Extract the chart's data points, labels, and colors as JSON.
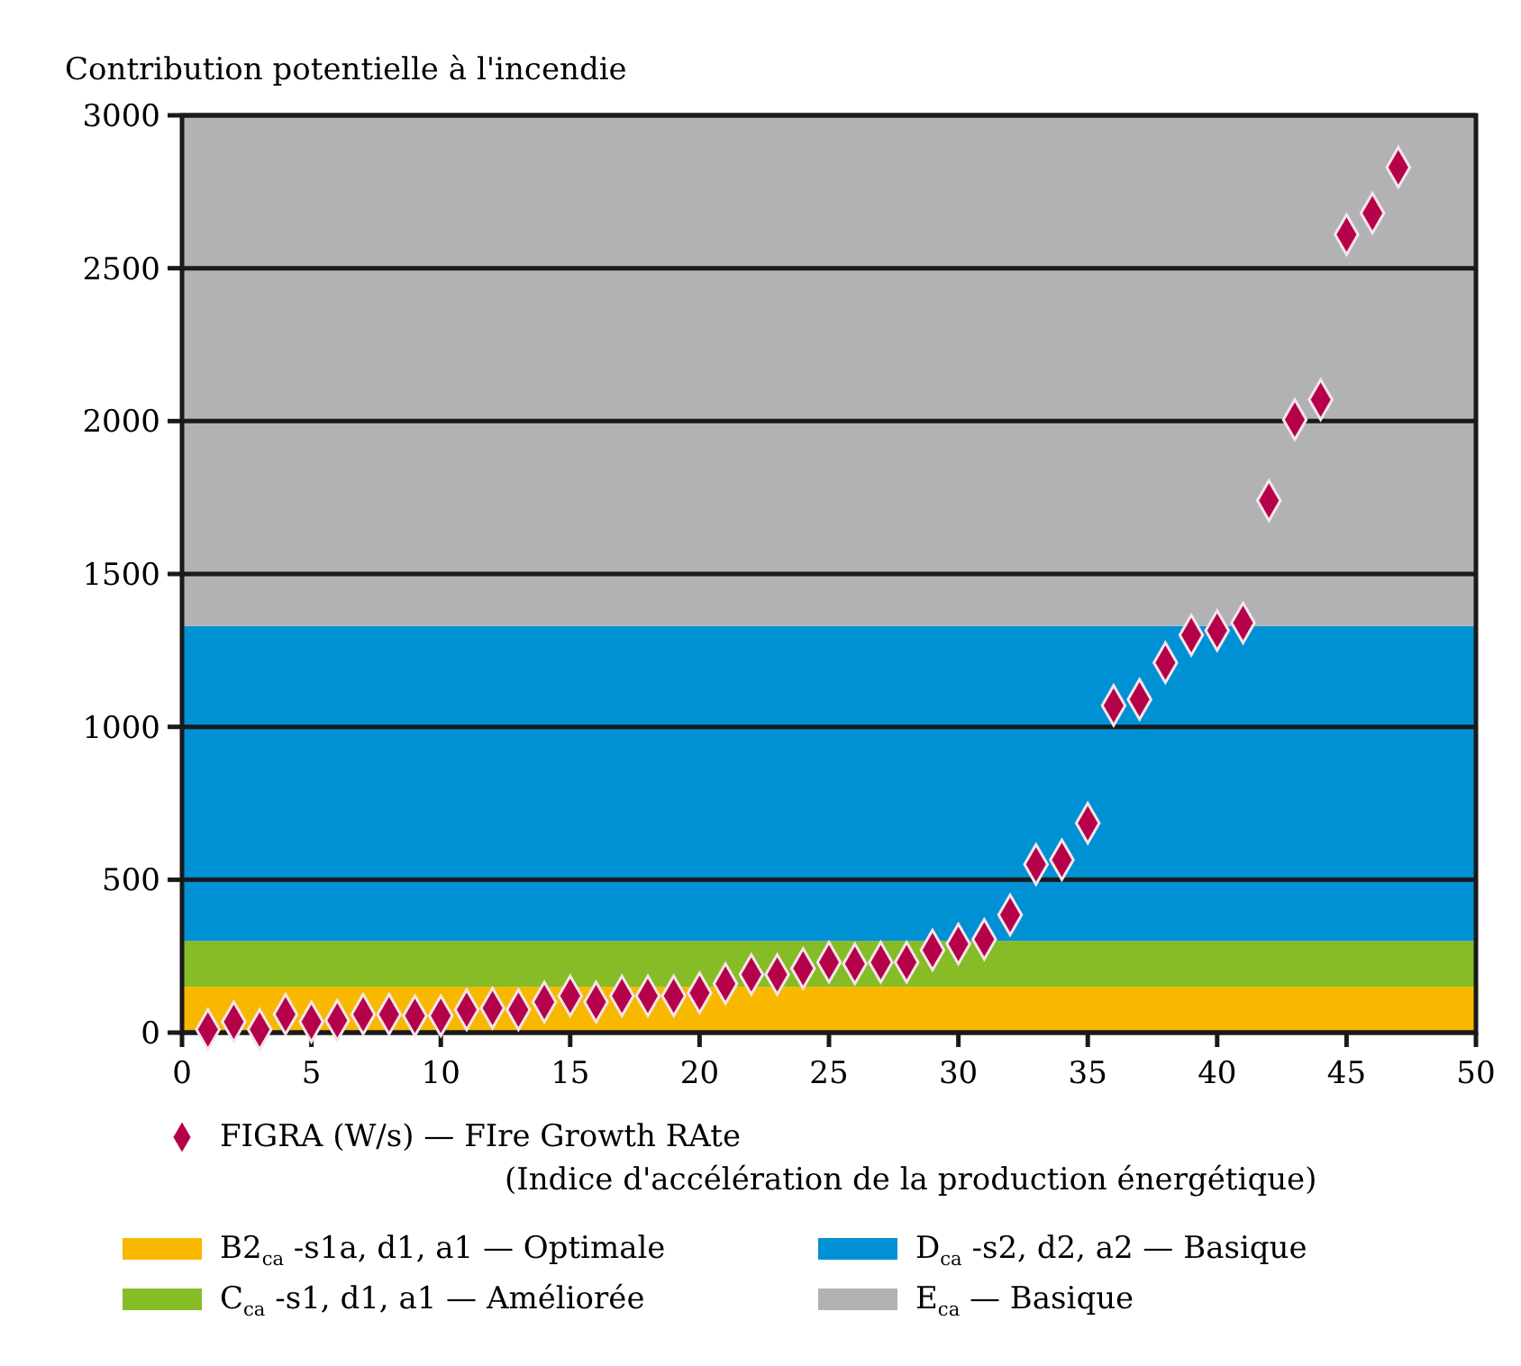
{
  "chart_data": {
    "type": "scatter",
    "ylabel": "Contribution potentielle à l'incendie",
    "x": [
      1,
      2,
      3,
      4,
      5,
      6,
      7,
      8,
      9,
      10,
      11,
      12,
      13,
      14,
      15,
      16,
      17,
      18,
      19,
      20,
      21,
      22,
      23,
      24,
      25,
      26,
      27,
      28,
      29,
      30,
      31,
      32,
      33,
      34,
      35,
      36,
      37,
      38,
      39,
      40,
      41,
      42,
      43,
      44,
      45,
      46,
      47
    ],
    "series": [
      {
        "name": "FIGRA (W/s) — FIre Growth RAte\n(Indice d'accélération de la production énergétique)",
        "color": "#b5004a",
        "values": [
          10,
          35,
          10,
          60,
          35,
          40,
          60,
          60,
          55,
          55,
          75,
          80,
          75,
          100,
          120,
          100,
          120,
          120,
          120,
          130,
          160,
          190,
          190,
          210,
          230,
          225,
          230,
          230,
          270,
          290,
          305,
          385,
          550,
          565,
          685,
          1070,
          1090,
          1210,
          1300,
          1315,
          1340,
          1740,
          2005,
          2070,
          2610,
          2680,
          2830
        ]
      }
    ],
    "xlim": [
      0,
      50
    ],
    "xticks": [
      0,
      5,
      10,
      15,
      20,
      25,
      30,
      35,
      40,
      45,
      50
    ],
    "ylim": [
      0,
      3000
    ],
    "yticks": [
      0,
      500,
      1000,
      1500,
      2000,
      2500,
      3000
    ],
    "bands": [
      {
        "axis": "y",
        "from": 0,
        "to": 150,
        "label": "B2$_{ca}$-s1a, d1, a1 — Optimale",
        "color": "#f9b800"
      },
      {
        "axis": "y",
        "from": 150,
        "to": 300,
        "label": "C$_{ca}$-s1, d1, a1 — Améliorée",
        "color": "#86bc25"
      },
      {
        "axis": "y",
        "from": 300,
        "to": 1330,
        "label": "D$_{ca}$-s2, d2, a2 — Basique",
        "color": "#0091d5"
      },
      {
        "axis": "y",
        "from": 1330,
        "to": 3000,
        "label": "E$_{ca}$ — Basique",
        "color": "#b2b2b4"
      }
    ],
    "grid": "y",
    "legend": "bottom",
    "marker": "diamond"
  }
}
